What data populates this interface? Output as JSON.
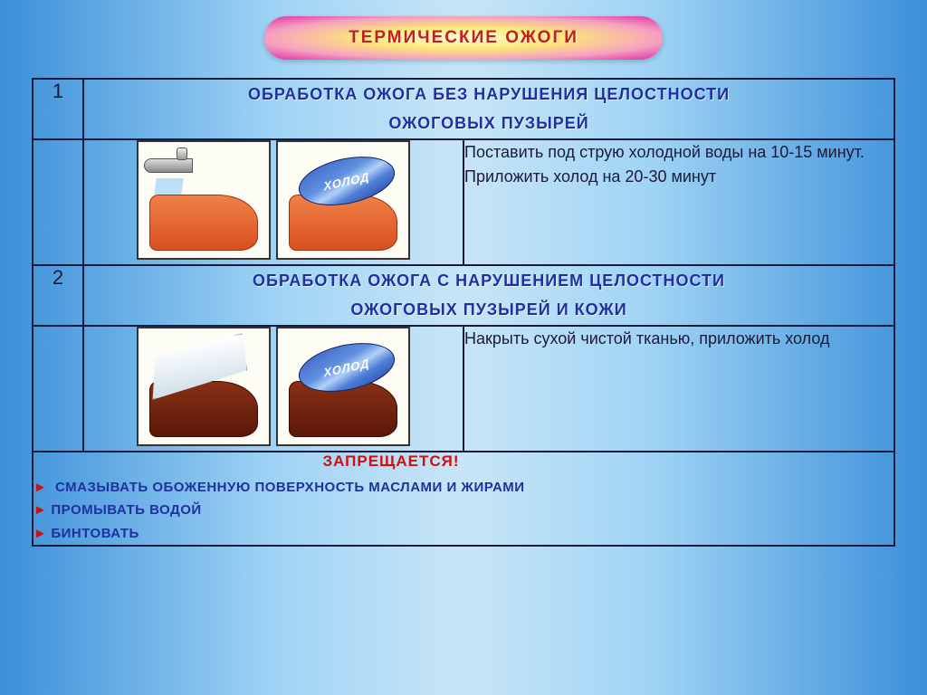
{
  "title": "ТЕРМИЧЕСКИЕ  ОЖОГИ",
  "section1": {
    "num": "1",
    "header_line1": "ОБРАБОТКА ОЖОГА БЕЗ НАРУШЕНИЯ ЦЕЛОСТНОСТИ",
    "header_line2": "ОЖОГОВЫХ ПУЗЫРЕЙ",
    "desc": "Поставить под струю холодной воды на 10-15 минут.   Приложить холод на 20-30 минут",
    "coldpack_label": "ХОЛОД"
  },
  "section2": {
    "num": "2",
    "header_line1": "ОБРАБОТКА ОЖОГА С НАРУШЕНИЕМ ЦЕЛОСТНОСТИ",
    "header_line2": "ОЖОГОВЫХ ПУЗЫРЕЙ  И КОЖИ",
    "desc": "Накрыть сухой чистой тканью, приложить холод",
    "coldpack_label": "ХОЛОД"
  },
  "warning": {
    "title": "ЗАПРЕЩАЕТСЯ!",
    "items": [
      " СМАЗЫВАТЬ ОБОЖЕННУЮ ПОВЕРХНОСТЬ МАСЛАМИ И ЖИРАМИ",
      "ПРОМЫВАТЬ ВОДОЙ",
      "БИНТОВАТЬ"
    ],
    "bullet": "►"
  },
  "colors": {
    "title_text": "#c02020",
    "header_text": "#2030a0",
    "body_text": "#1a1a3a",
    "warn_title": "#d01010",
    "border": "#1a1a3a"
  }
}
